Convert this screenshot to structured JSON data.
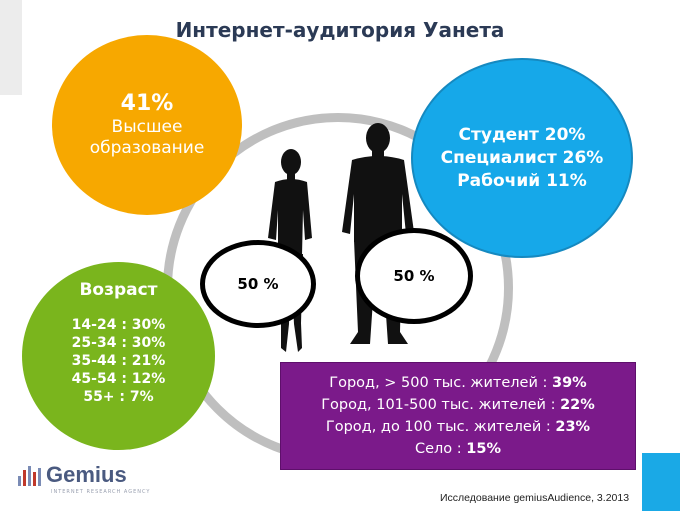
{
  "title": "Интернет-аудитория Уанета",
  "education": {
    "percent": "41%",
    "line1": "Высшее",
    "line2": "образование",
    "color": "#f7a800"
  },
  "occupation": {
    "lines": [
      "Студент 20%",
      "Специалист 26%",
      "Рабочий 11%"
    ],
    "color": "#16a8e9"
  },
  "age": {
    "title": "Возраст",
    "lines": [
      "14-24 : 30%",
      "25-34 : 30%",
      "35-44 : 21%",
      "45-54 : 12%",
      "55+ : 7%"
    ],
    "color": "#7ab51d"
  },
  "gender": {
    "female_pct": "50 %",
    "male_pct": "50 %"
  },
  "settlement": {
    "color": "#7b1a8a",
    "rows": [
      {
        "label": "Город, > 500 тыс. жителей : ",
        "value": "39%"
      },
      {
        "label": "Город, 101-500 тыс. жителей : ",
        "value": "22%"
      },
      {
        "label": "Город, до 100 тыс. жителей : ",
        "value": "23%"
      },
      {
        "label": "Село : ",
        "value": "15%"
      }
    ]
  },
  "logo": {
    "text": "Gemius",
    "icon": "gemius-bars-icon",
    "tagline": "INTERNET RESEARCH AGENCY"
  },
  "source": "Исследование gemiusAudience, 3.2013"
}
